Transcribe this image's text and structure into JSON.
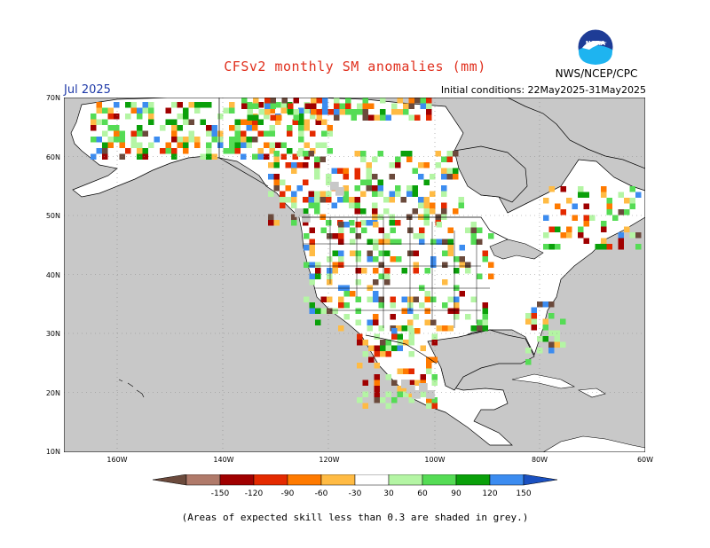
{
  "header": {
    "title": "CFSv2 monthly SM anomalies (mm)",
    "valid_month": "Jul 2025",
    "initial_conditions": "Initial conditions: 22May2025-31May2025",
    "agency": "NWS/NCEP/CPC",
    "logo_text": "NOAA"
  },
  "map": {
    "lat_ticks": [
      "70N",
      "60N",
      "50N",
      "40N",
      "30N",
      "20N",
      "10N"
    ],
    "lon_ticks": [
      "160W",
      "140W",
      "120W",
      "100W",
      "80W",
      "60W"
    ],
    "colors": {
      "ocean": "#c8c8c8",
      "land": "#ffffff",
      "grey_skill": "#c8c8c8",
      "border": "#000000"
    }
  },
  "colorbar": {
    "labels": [
      "-150",
      "-120",
      "-90",
      "-60",
      "-30",
      "30",
      "60",
      "90",
      "120",
      "150"
    ],
    "colors": [
      "#6b4a3c",
      "#b07a6a",
      "#a00000",
      "#e42a00",
      "#ff7a00",
      "#ffbb44",
      "#ffffff",
      "#b4f5a4",
      "#55dc55",
      "#0aa00a",
      "#3c8cf0",
      "#1a50c0"
    ]
  },
  "footnote": "(Areas of expected skill less than 0.3 are shaded in grey.)"
}
